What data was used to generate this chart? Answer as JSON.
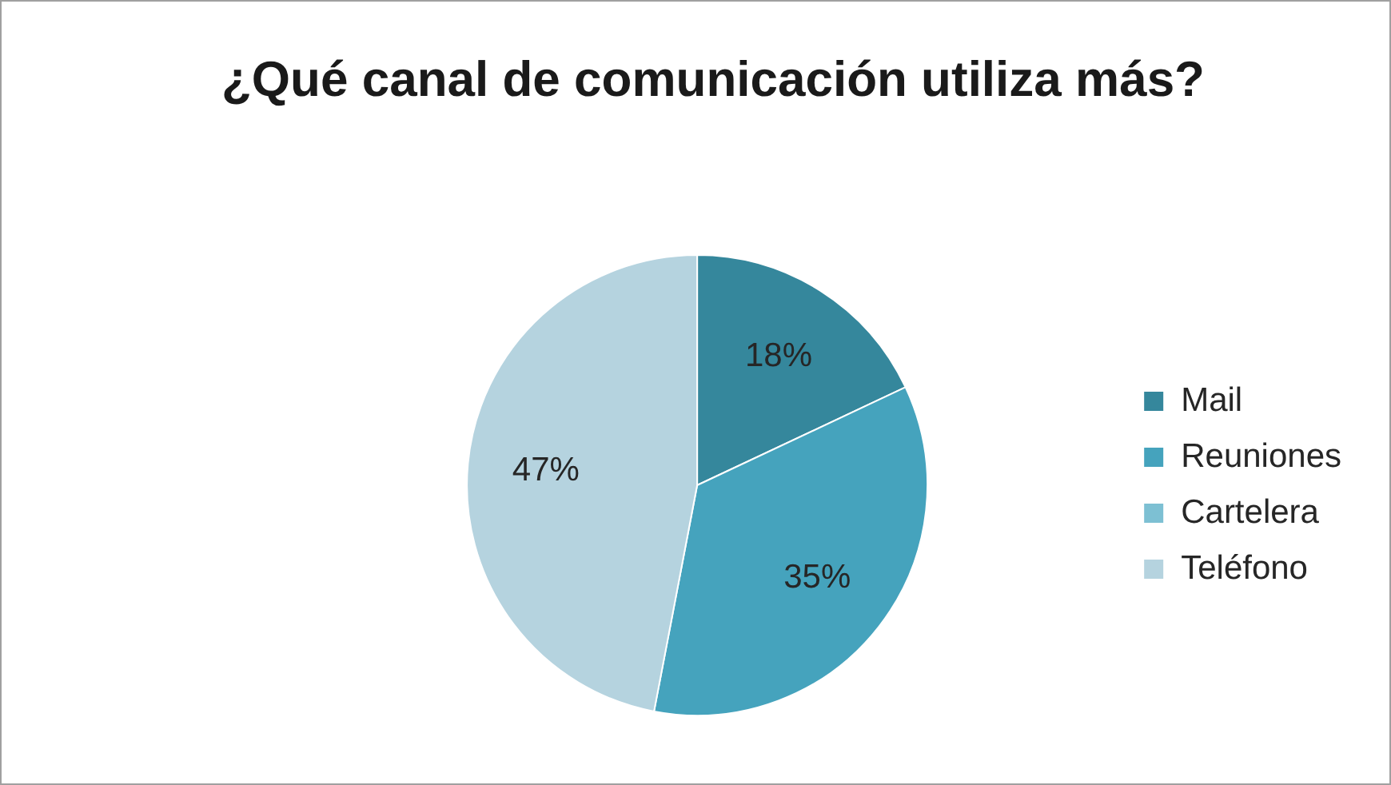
{
  "chart_data": {
    "type": "pie",
    "title": "¿Qué canal de comunicación utiliza más?",
    "categories": [
      "Mail",
      "Reuniones",
      "Cartelera",
      "Teléfono"
    ],
    "values": [
      18,
      35,
      0,
      47
    ],
    "colors": [
      "#35879c",
      "#45a3bd",
      "#7dc0d3",
      "#b5d3df"
    ],
    "value_labels": [
      "18%",
      "35%",
      null,
      "47%"
    ],
    "legend": "right"
  }
}
